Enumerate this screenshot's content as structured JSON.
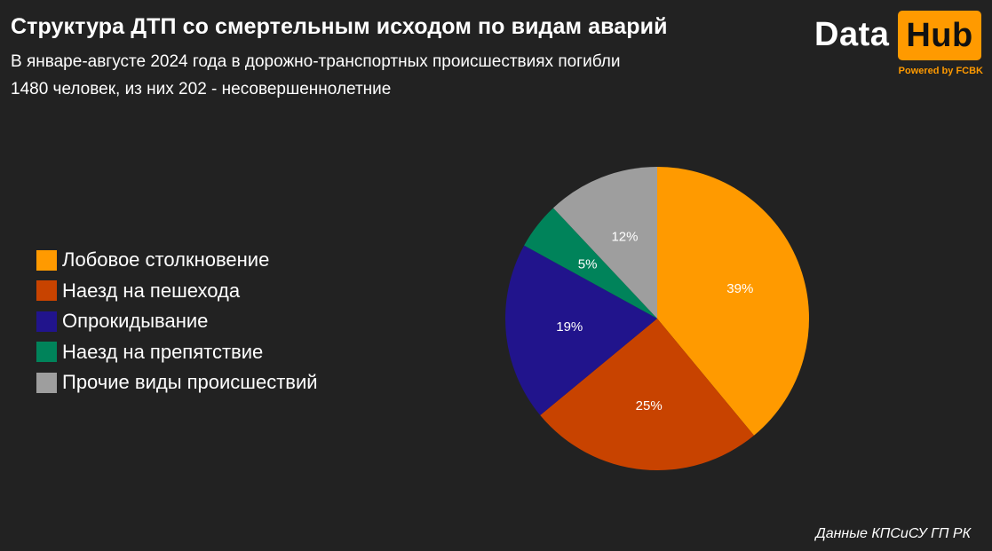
{
  "header": {
    "title": "Структура ДТП со смертельным исходом по видам аварий",
    "subtitle_line1": "В январе-августе 2024 года в дорожно-транспортных происшествиях погибли",
    "subtitle_line2": "1480 человек, из них 202 - несовершеннолетние"
  },
  "logo": {
    "data": "Data",
    "hub": "Hub",
    "powered": "Powered by FCBK",
    "accent_color": "#ff9a00"
  },
  "source": "Данные КПСиСУ ГП РК",
  "chart_data": {
    "type": "pie",
    "categories": [
      "Лобовое столкновение",
      "Наезд на пешехода",
      "Опрокидывание",
      "Наезд на препятствие",
      "Прочие виды происшествий"
    ],
    "values": [
      39,
      25,
      19,
      5,
      12
    ],
    "data_labels": [
      "39%",
      "25%",
      "19%",
      "5%",
      "12%"
    ],
    "colors": [
      "#ff9a00",
      "#c84300",
      "#21148c",
      "#00835a",
      "#9e9e9e"
    ],
    "start": "12 o'clock, clockwise",
    "legend_position": "left"
  }
}
